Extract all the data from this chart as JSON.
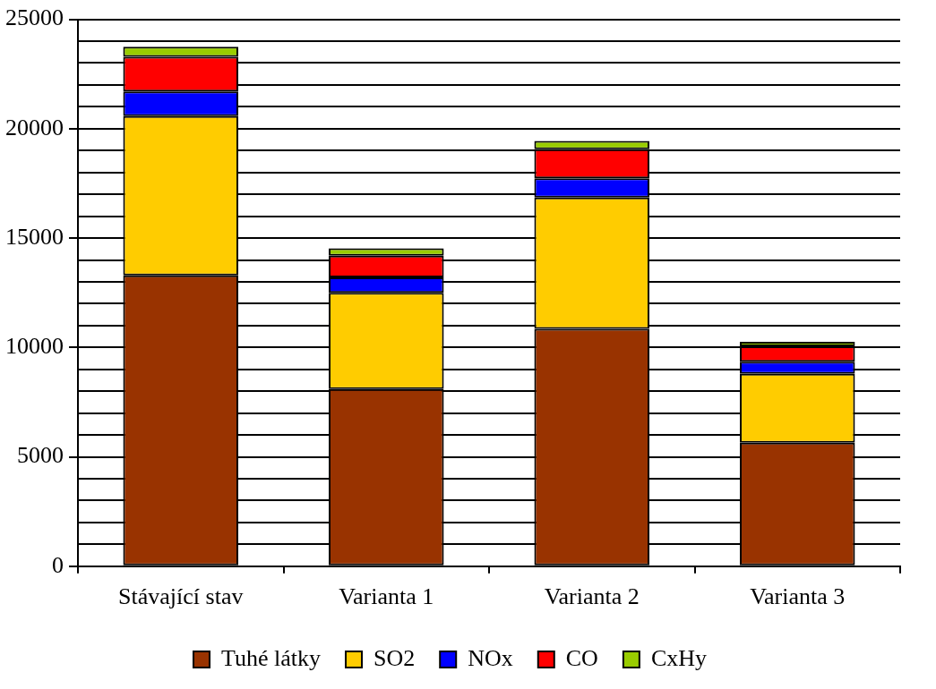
{
  "chart_data": {
    "type": "bar",
    "stacked": true,
    "categories": [
      "Stávající stav",
      "Varianta 1",
      "Varianta 2",
      "Varianta 3"
    ],
    "series": [
      {
        "name": "Tuhé látky",
        "color": "#993300",
        "values": [
          13300,
          8100,
          10850,
          5650
        ]
      },
      {
        "name": "SO2",
        "color": "#ffcc00",
        "values": [
          7280,
          4400,
          6000,
          3150
        ]
      },
      {
        "name": "NOx",
        "color": "#0000ff",
        "values": [
          1120,
          700,
          880,
          550
        ]
      },
      {
        "name": "CO",
        "color": "#ff0000",
        "values": [
          1590,
          1000,
          1330,
          700
        ]
      },
      {
        "name": "CxHy",
        "color": "#99cc00",
        "values": [
          460,
          330,
          380,
          210
        ]
      }
    ],
    "ylim": [
      0,
      25000
    ],
    "yticks": [
      0,
      {
        "value": 1000,
        "label": null
      },
      {
        "value": 2000,
        "label": null
      },
      {
        "value": 3000,
        "label": null
      },
      {
        "value": 4000,
        "label": null
      },
      5000,
      {
        "value": 6000,
        "label": null
      },
      {
        "value": 7000,
        "label": null
      },
      {
        "value": 8000,
        "label": null
      },
      {
        "value": 9000,
        "label": null
      },
      10000,
      {
        "value": 11000,
        "label": null
      },
      {
        "value": 12000,
        "label": null
      },
      {
        "value": 13000,
        "label": null
      },
      {
        "value": 14000,
        "label": null
      },
      15000,
      {
        "value": 16000,
        "label": null
      },
      {
        "value": 17000,
        "label": null
      },
      {
        "value": 18000,
        "label": null
      },
      {
        "value": 19000,
        "label": null
      },
      20000,
      {
        "value": 21000,
        "label": null
      },
      {
        "value": 22000,
        "label": null
      },
      {
        "value": 23000,
        "label": null
      },
      {
        "value": 24000,
        "label": null
      },
      25000
    ],
    "grid": "y",
    "legend": "bottom"
  }
}
